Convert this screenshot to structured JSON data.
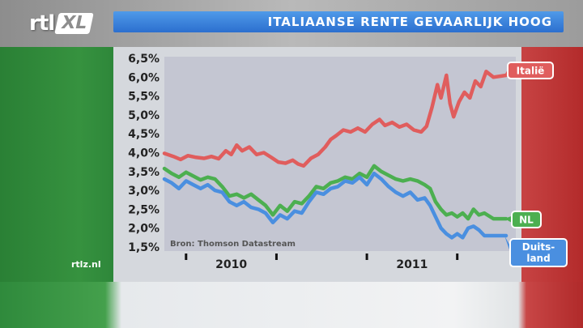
{
  "header": {
    "logo_left": "rtl",
    "logo_right": "XL",
    "title": "ITALIAANSE RENTE GEVAARLIJK HOOG"
  },
  "footer": {
    "site": "rtlz.nl"
  },
  "colors": {
    "italy": "#e05d5d",
    "nl": "#4caf50",
    "germany": "#4a8fe0",
    "plot_bg": "#c4c6d2",
    "title_bar": "#3b82dd"
  },
  "chart_data": {
    "type": "line",
    "title": "ITALIAANSE RENTE GEVAARLIJK HOOG",
    "source": "Bron: Thomson Datastream",
    "y_ticks": [
      "6,5%",
      "6,0%",
      "5,5%",
      "5,0%",
      "4,5%",
      "4,0%",
      "3,5%",
      "3,0%",
      "2,5%",
      "2,0%",
      "1,5%"
    ],
    "ylim": [
      1.5,
      6.5
    ],
    "xlim": [
      2009.63,
      2011.52
    ],
    "x_ticks": [
      2009.75,
      2010.25,
      2010.75,
      2011.25
    ],
    "x_labels": [
      {
        "x": 2010.0,
        "label": "2010"
      },
      {
        "x": 2011.0,
        "label": "2011"
      }
    ],
    "grid": false,
    "series": [
      {
        "name": "Italië",
        "color": "#e05d5d",
        "label_lines": [
          "Italië"
        ],
        "points": [
          [
            2009.63,
            3.98
          ],
          [
            2009.68,
            3.9
          ],
          [
            2009.72,
            3.82
          ],
          [
            2009.76,
            3.92
          ],
          [
            2009.8,
            3.88
          ],
          [
            2009.85,
            3.85
          ],
          [
            2009.89,
            3.9
          ],
          [
            2009.93,
            3.84
          ],
          [
            2009.97,
            4.05
          ],
          [
            2010.0,
            3.95
          ],
          [
            2010.03,
            4.2
          ],
          [
            2010.06,
            4.05
          ],
          [
            2010.1,
            4.15
          ],
          [
            2010.14,
            3.95
          ],
          [
            2010.18,
            4.0
          ],
          [
            2010.22,
            3.88
          ],
          [
            2010.26,
            3.75
          ],
          [
            2010.3,
            3.72
          ],
          [
            2010.34,
            3.8
          ],
          [
            2010.37,
            3.7
          ],
          [
            2010.4,
            3.65
          ],
          [
            2010.44,
            3.85
          ],
          [
            2010.48,
            3.95
          ],
          [
            2010.52,
            4.15
          ],
          [
            2010.55,
            4.35
          ],
          [
            2010.58,
            4.45
          ],
          [
            2010.62,
            4.6
          ],
          [
            2010.66,
            4.55
          ],
          [
            2010.7,
            4.65
          ],
          [
            2010.74,
            4.55
          ],
          [
            2010.78,
            4.75
          ],
          [
            2010.82,
            4.88
          ],
          [
            2010.85,
            4.72
          ],
          [
            2010.89,
            4.8
          ],
          [
            2010.93,
            4.68
          ],
          [
            2010.97,
            4.75
          ],
          [
            2011.01,
            4.6
          ],
          [
            2011.05,
            4.55
          ],
          [
            2011.08,
            4.7
          ],
          [
            2011.11,
            5.2
          ],
          [
            2011.14,
            5.8
          ],
          [
            2011.16,
            5.45
          ],
          [
            2011.19,
            6.05
          ],
          [
            2011.21,
            5.3
          ],
          [
            2011.23,
            4.95
          ],
          [
            2011.26,
            5.35
          ],
          [
            2011.29,
            5.6
          ],
          [
            2011.32,
            5.45
          ],
          [
            2011.35,
            5.9
          ],
          [
            2011.38,
            5.75
          ],
          [
            2011.41,
            6.15
          ],
          [
            2011.45,
            6.0
          ],
          [
            2011.52,
            6.05
          ]
        ]
      },
      {
        "name": "NL",
        "color": "#4caf50",
        "label_lines": [
          "NL"
        ],
        "points": [
          [
            2009.63,
            3.58
          ],
          [
            2009.67,
            3.45
          ],
          [
            2009.71,
            3.35
          ],
          [
            2009.75,
            3.48
          ],
          [
            2009.79,
            3.38
          ],
          [
            2009.83,
            3.28
          ],
          [
            2009.87,
            3.35
          ],
          [
            2009.91,
            3.3
          ],
          [
            2009.95,
            3.1
          ],
          [
            2009.99,
            2.85
          ],
          [
            2010.03,
            2.9
          ],
          [
            2010.07,
            2.8
          ],
          [
            2010.11,
            2.9
          ],
          [
            2010.15,
            2.75
          ],
          [
            2010.19,
            2.6
          ],
          [
            2010.23,
            2.35
          ],
          [
            2010.27,
            2.6
          ],
          [
            2010.31,
            2.45
          ],
          [
            2010.35,
            2.7
          ],
          [
            2010.39,
            2.65
          ],
          [
            2010.43,
            2.85
          ],
          [
            2010.47,
            3.1
          ],
          [
            2010.51,
            3.05
          ],
          [
            2010.55,
            3.2
          ],
          [
            2010.59,
            3.25
          ],
          [
            2010.63,
            3.35
          ],
          [
            2010.67,
            3.3
          ],
          [
            2010.71,
            3.45
          ],
          [
            2010.75,
            3.35
          ],
          [
            2010.79,
            3.65
          ],
          [
            2010.83,
            3.5
          ],
          [
            2010.87,
            3.4
          ],
          [
            2010.91,
            3.3
          ],
          [
            2010.95,
            3.25
          ],
          [
            2010.99,
            3.3
          ],
          [
            2011.03,
            3.25
          ],
          [
            2011.07,
            3.15
          ],
          [
            2011.1,
            3.05
          ],
          [
            2011.13,
            2.7
          ],
          [
            2011.16,
            2.5
          ],
          [
            2011.19,
            2.35
          ],
          [
            2011.22,
            2.4
          ],
          [
            2011.25,
            2.3
          ],
          [
            2011.28,
            2.4
          ],
          [
            2011.31,
            2.25
          ],
          [
            2011.34,
            2.5
          ],
          [
            2011.37,
            2.35
          ],
          [
            2011.4,
            2.4
          ],
          [
            2011.45,
            2.25
          ],
          [
            2011.52,
            2.25
          ]
        ]
      },
      {
        "name": "Duitsland",
        "color": "#4a8fe0",
        "label_lines": [
          "Duits-",
          "land"
        ],
        "points": [
          [
            2009.63,
            3.3
          ],
          [
            2009.67,
            3.2
          ],
          [
            2009.71,
            3.05
          ],
          [
            2009.75,
            3.25
          ],
          [
            2009.79,
            3.15
          ],
          [
            2009.83,
            3.05
          ],
          [
            2009.87,
            3.15
          ],
          [
            2009.91,
            3.0
          ],
          [
            2009.95,
            2.95
          ],
          [
            2009.99,
            2.7
          ],
          [
            2010.03,
            2.6
          ],
          [
            2010.07,
            2.7
          ],
          [
            2010.11,
            2.55
          ],
          [
            2010.15,
            2.5
          ],
          [
            2010.19,
            2.4
          ],
          [
            2010.23,
            2.15
          ],
          [
            2010.27,
            2.35
          ],
          [
            2010.31,
            2.25
          ],
          [
            2010.35,
            2.45
          ],
          [
            2010.39,
            2.4
          ],
          [
            2010.43,
            2.7
          ],
          [
            2010.47,
            2.95
          ],
          [
            2010.51,
            2.9
          ],
          [
            2010.55,
            3.05
          ],
          [
            2010.59,
            3.1
          ],
          [
            2010.63,
            3.25
          ],
          [
            2010.67,
            3.2
          ],
          [
            2010.71,
            3.35
          ],
          [
            2010.75,
            3.15
          ],
          [
            2010.79,
            3.45
          ],
          [
            2010.83,
            3.3
          ],
          [
            2010.87,
            3.1
          ],
          [
            2010.91,
            2.95
          ],
          [
            2010.95,
            2.85
          ],
          [
            2010.99,
            2.95
          ],
          [
            2011.03,
            2.75
          ],
          [
            2011.07,
            2.8
          ],
          [
            2011.1,
            2.6
          ],
          [
            2011.13,
            2.3
          ],
          [
            2011.16,
            2.0
          ],
          [
            2011.19,
            1.85
          ],
          [
            2011.22,
            1.75
          ],
          [
            2011.25,
            1.85
          ],
          [
            2011.28,
            1.75
          ],
          [
            2011.31,
            2.0
          ],
          [
            2011.34,
            2.05
          ],
          [
            2011.37,
            1.95
          ],
          [
            2011.4,
            1.8
          ],
          [
            2011.45,
            1.8
          ],
          [
            2011.52,
            1.8
          ]
        ]
      }
    ]
  }
}
